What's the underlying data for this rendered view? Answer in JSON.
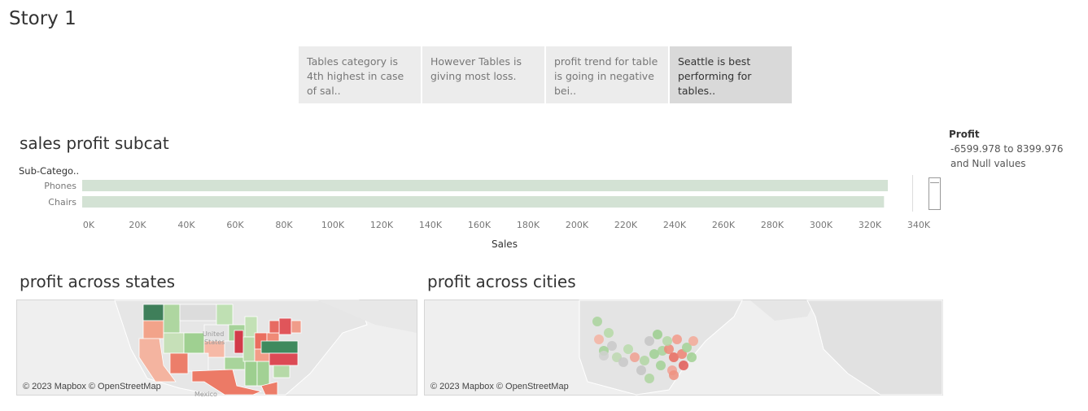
{
  "story": {
    "title": "Story 1",
    "points": [
      {
        "text": "Tables category is 4th highest in case of sal.."
      },
      {
        "text": "However Tables is giving most loss."
      },
      {
        "text": "profit trend for table is going in negative bei.."
      },
      {
        "text": "Seattle is best performing for tables.."
      }
    ]
  },
  "bar_sheet": {
    "title": "sales profit subcat",
    "column_header": "Sub-Catego..",
    "x_ticks": [
      "0K",
      "20K",
      "40K",
      "60K",
      "80K",
      "100K",
      "120K",
      "140K",
      "160K",
      "180K",
      "200K",
      "220K",
      "240K",
      "260K",
      "280K",
      "300K",
      "320K",
      "340K"
    ],
    "xlabel": "Sales"
  },
  "chart_data": {
    "type": "bar",
    "orientation": "horizontal",
    "categories": [
      "Phones",
      "Chairs"
    ],
    "values": [
      330007,
      328449
    ],
    "xlabel": "Sales",
    "xlim": [
      0,
      340000
    ],
    "bar_color": "#d3e2d4"
  },
  "legend": {
    "title": "Profit",
    "range": "-6599.978 to 8399.976",
    "null_text": "and Null values"
  },
  "map_states": {
    "title": "profit across states",
    "credit": "© 2023 Mapbox © OpenStreetMap",
    "labels": [
      "United",
      "States",
      "Mexico"
    ]
  },
  "map_cities": {
    "title": "profit across cities",
    "credit": "© 2023 Mapbox © OpenStreetMap"
  },
  "colors": {
    "positive": "#4e9a5e",
    "negative": "#e0584f",
    "neutral": "#d9d9d9"
  }
}
